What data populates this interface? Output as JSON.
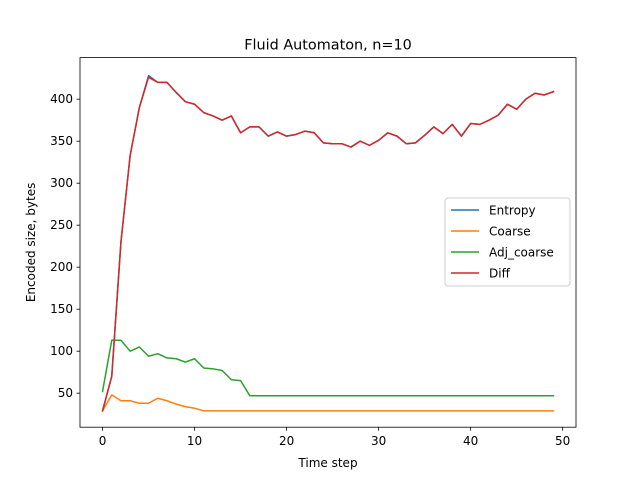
{
  "chart_data": {
    "type": "line",
    "title": "Fluid Automaton, n=10",
    "xlabel": "Time step",
    "ylabel": "Encoded size, bytes",
    "xlim": [
      -2.45,
      51.45
    ],
    "ylim": [
      9.5,
      449.5
    ],
    "xticks": [
      0,
      10,
      20,
      30,
      40,
      50
    ],
    "yticks": [
      50,
      100,
      150,
      200,
      250,
      300,
      350,
      400
    ],
    "legend_position": "center-right",
    "x": [
      0,
      1,
      2,
      3,
      4,
      5,
      6,
      7,
      8,
      9,
      10,
      11,
      12,
      13,
      14,
      15,
      16,
      17,
      18,
      19,
      20,
      21,
      22,
      23,
      24,
      25,
      26,
      27,
      28,
      29,
      30,
      31,
      32,
      33,
      34,
      35,
      36,
      37,
      38,
      39,
      40,
      41,
      42,
      43,
      44,
      45,
      46,
      47,
      48,
      49
    ],
    "series": [
      {
        "name": "Entropy",
        "color": "#1f77b4",
        "values": [
          29,
          70,
          230,
          333,
          390,
          428,
          420,
          420,
          408,
          397,
          394,
          384,
          380,
          375,
          380,
          360,
          367,
          367,
          356,
          361,
          356,
          358,
          362,
          360,
          348,
          347,
          347,
          343,
          350,
          345,
          351,
          360,
          356,
          347,
          348,
          357,
          367,
          359,
          370,
          356,
          371,
          370,
          375,
          381,
          394,
          388,
          400,
          407,
          405,
          409
        ]
      },
      {
        "name": "Coarse",
        "color": "#ff7f0e",
        "values": [
          29,
          48,
          41,
          41,
          38,
          38,
          44,
          41,
          37,
          34,
          32,
          29,
          29,
          29,
          29,
          29,
          29,
          29,
          29,
          29,
          29,
          29,
          29,
          29,
          29,
          29,
          29,
          29,
          29,
          29,
          29,
          29,
          29,
          29,
          29,
          29,
          29,
          29,
          29,
          29,
          29,
          29,
          29,
          29,
          29,
          29,
          29,
          29,
          29,
          29
        ]
      },
      {
        "name": "Adj_coarse",
        "color": "#2ca02c",
        "values": [
          52,
          113,
          113,
          100,
          105,
          94,
          97,
          92,
          91,
          87,
          91,
          80,
          79,
          77,
          66,
          65,
          47,
          47,
          47,
          47,
          47,
          47,
          47,
          47,
          47,
          47,
          47,
          47,
          47,
          47,
          47,
          47,
          47,
          47,
          47,
          47,
          47,
          47,
          47,
          47,
          47,
          47,
          47,
          47,
          47,
          47,
          47,
          47,
          47,
          47
        ]
      },
      {
        "name": "Diff",
        "color": "#d62728",
        "values": [
          29,
          70,
          230,
          333,
          390,
          426,
          420,
          420,
          408,
          397,
          394,
          384,
          380,
          375,
          380,
          360,
          367,
          367,
          356,
          361,
          356,
          358,
          362,
          360,
          348,
          347,
          347,
          343,
          350,
          345,
          351,
          360,
          356,
          347,
          348,
          357,
          367,
          359,
          370,
          356,
          371,
          370,
          375,
          381,
          394,
          388,
          400,
          407,
          405,
          409
        ]
      }
    ]
  }
}
